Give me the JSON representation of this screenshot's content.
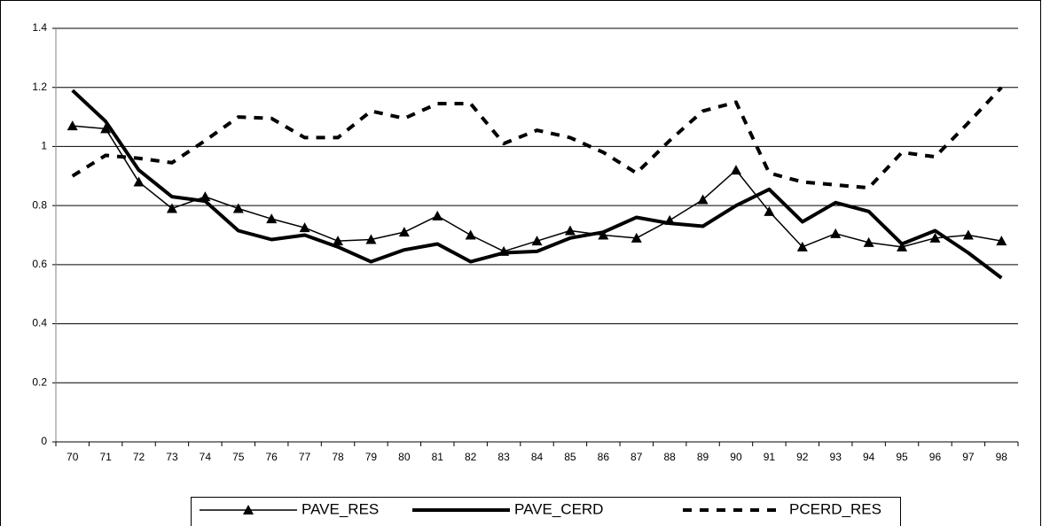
{
  "chart_data": {
    "type": "line",
    "categories": [
      "70",
      "71",
      "72",
      "73",
      "74",
      "75",
      "76",
      "77",
      "78",
      "79",
      "80",
      "81",
      "82",
      "83",
      "84",
      "85",
      "86",
      "87",
      "88",
      "89",
      "90",
      "91",
      "92",
      "93",
      "94",
      "95",
      "96",
      "97",
      "98"
    ],
    "series": [
      {
        "name": "PAVE_RES",
        "color": "#000000",
        "line_style": "solid",
        "line_weight": "thin",
        "marker": "triangle",
        "values": [
          1.07,
          1.06,
          0.88,
          0.79,
          0.83,
          0.79,
          0.755,
          0.725,
          0.68,
          0.685,
          0.71,
          0.765,
          0.7,
          0.645,
          0.68,
          0.715,
          0.7,
          0.69,
          0.75,
          0.82,
          0.92,
          0.78,
          0.66,
          0.705,
          0.675,
          0.66,
          0.69,
          0.7,
          0.68
        ]
      },
      {
        "name": "PAVE_CERD",
        "color": "#000000",
        "line_style": "solid",
        "line_weight": "thick",
        "marker": "none",
        "values": [
          1.19,
          1.085,
          0.92,
          0.83,
          0.815,
          0.715,
          0.685,
          0.7,
          0.66,
          0.61,
          0.65,
          0.67,
          0.61,
          0.64,
          0.645,
          0.69,
          0.71,
          0.76,
          0.74,
          0.73,
          0.8,
          0.855,
          0.745,
          0.81,
          0.78,
          0.67,
          0.715,
          0.64,
          0.555
        ]
      },
      {
        "name": "PCERD_RES",
        "color": "#000000",
        "line_style": "dashed",
        "line_weight": "thick",
        "marker": "none",
        "values": [
          0.9,
          0.97,
          0.96,
          0.945,
          1.02,
          1.1,
          1.095,
          1.03,
          1.03,
          1.12,
          1.095,
          1.145,
          1.145,
          1.01,
          1.055,
          1.03,
          0.98,
          0.91,
          1.02,
          1.12,
          1.15,
          0.91,
          0.88,
          0.87,
          0.86,
          0.98,
          0.965,
          1.08,
          1.2
        ]
      }
    ],
    "ylim": [
      0,
      1.4
    ],
    "yticks": [
      0,
      0.2,
      0.4,
      0.6,
      0.8,
      1,
      1.2,
      1.4
    ],
    "grid": true,
    "legend": "bottom"
  }
}
